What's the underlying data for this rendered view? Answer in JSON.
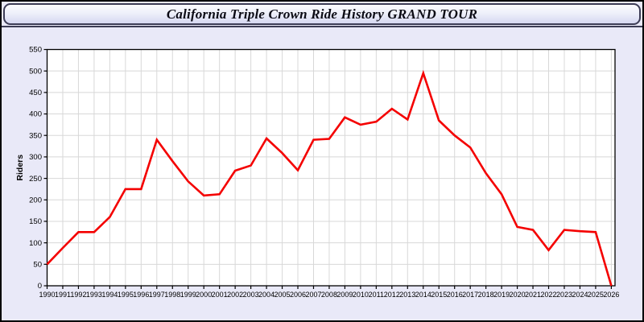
{
  "header": {
    "title": "California Triple Crown Ride History GRAND TOUR"
  },
  "chart_data": {
    "type": "line",
    "title": "California Triple Crown Ride History GRAND TOUR",
    "xlabel": "",
    "ylabel": "Riders",
    "categories": [
      "1990",
      "1991",
      "1992",
      "1993",
      "1994",
      "1995",
      "1996",
      "1997",
      "1998",
      "1999",
      "2000",
      "2001",
      "2002",
      "2003",
      "2004",
      "2005",
      "2006",
      "2007",
      "2008",
      "2009",
      "2010",
      "2011",
      "2012",
      "2013",
      "2014",
      "2015",
      "2016",
      "2017",
      "2018",
      "2019",
      "2020",
      "2021",
      "2022",
      "2023",
      "2024",
      "2025",
      "2026"
    ],
    "values": [
      50,
      88,
      125,
      125,
      160,
      225,
      225,
      340,
      290,
      243,
      210,
      213,
      268,
      280,
      343,
      309,
      269,
      340,
      342,
      392,
      375,
      382,
      412,
      387,
      495,
      385,
      350,
      322,
      262,
      213,
      137,
      130,
      83,
      130,
      127,
      125,
      0
    ],
    "ylim": [
      0,
      550
    ],
    "ytick_step": 50,
    "yticks": [
      "0",
      "50",
      "100",
      "150",
      "200",
      "250",
      "300",
      "350",
      "400",
      "450",
      "500",
      "550"
    ],
    "grid": true,
    "legend_position": "none",
    "colors": {
      "series_line": "#f40000",
      "plot_background": "#ffffff",
      "page_background": "#e9e9f8",
      "gridline": "#d8d8d8",
      "axis": "#000000",
      "tick_label": "#000000"
    }
  }
}
